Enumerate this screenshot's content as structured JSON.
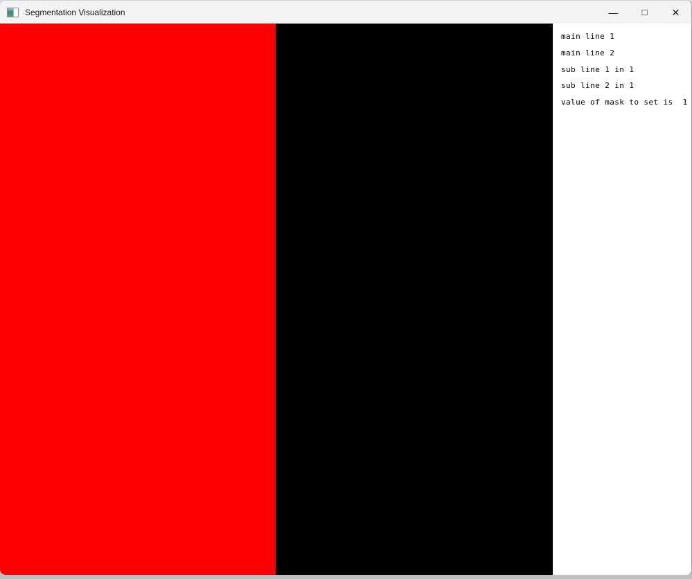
{
  "window": {
    "title": "Segmentation Visualization",
    "icon": "app-image-thumbnail-icon",
    "controls": {
      "minimize": "—",
      "maximize": "□",
      "close": "✕"
    }
  },
  "viewer": {
    "regions": [
      {
        "name": "segmentation-mask-region",
        "color": "#ff0000"
      },
      {
        "name": "image-background-region",
        "color": "#000000"
      }
    ]
  },
  "info_panel": {
    "background": "#ffffff",
    "lines": [
      "main line 1",
      "main line 2",
      "sub line 1 in 1",
      "sub line 2 in 1",
      "value of mask to set is  1"
    ]
  },
  "colors": {
    "titlebar_bg": "#f3f3f5",
    "mask_red": "#ff0000",
    "background_black": "#000000",
    "panel_white": "#ffffff"
  }
}
